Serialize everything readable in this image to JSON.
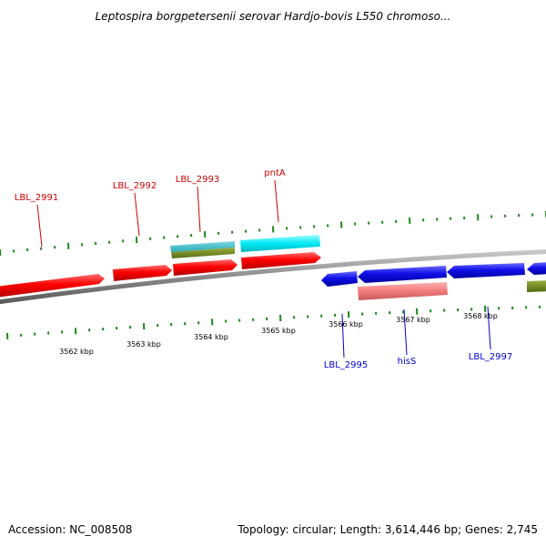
{
  "title": "Leptospira borgpetersenii serovar Hardjo-bovis L550 chromoso...",
  "footer": {
    "accession": "Accession: NC_008508",
    "summary": "Topology: circular; Length: 3,614,446 bp; Genes: 2,745"
  },
  "colors": {
    "forward_cds": "#ff0000",
    "reverse_cds": "#0000e6",
    "forward_label": "#cc0000",
    "reverse_label": "#0000cc",
    "cyan_feature": "#00e5f0",
    "olive_feature": "#6b8e23",
    "pink_feature": "#f08080",
    "tick_green": "#1a8a1a",
    "backbone": "#808080"
  },
  "scale_labels": [
    "3562 kbp",
    "3563 kbp",
    "3564 kbp",
    "3565 kbp",
    "3566 kbp",
    "3567 kbp",
    "3568 kbp"
  ],
  "gene_labels": {
    "forward": [
      "LBL_2991",
      "LBL_2992",
      "LBL_2993",
      "pntA"
    ],
    "reverse": [
      "LBL_2995",
      "hisS",
      "LBL_2997"
    ]
  }
}
